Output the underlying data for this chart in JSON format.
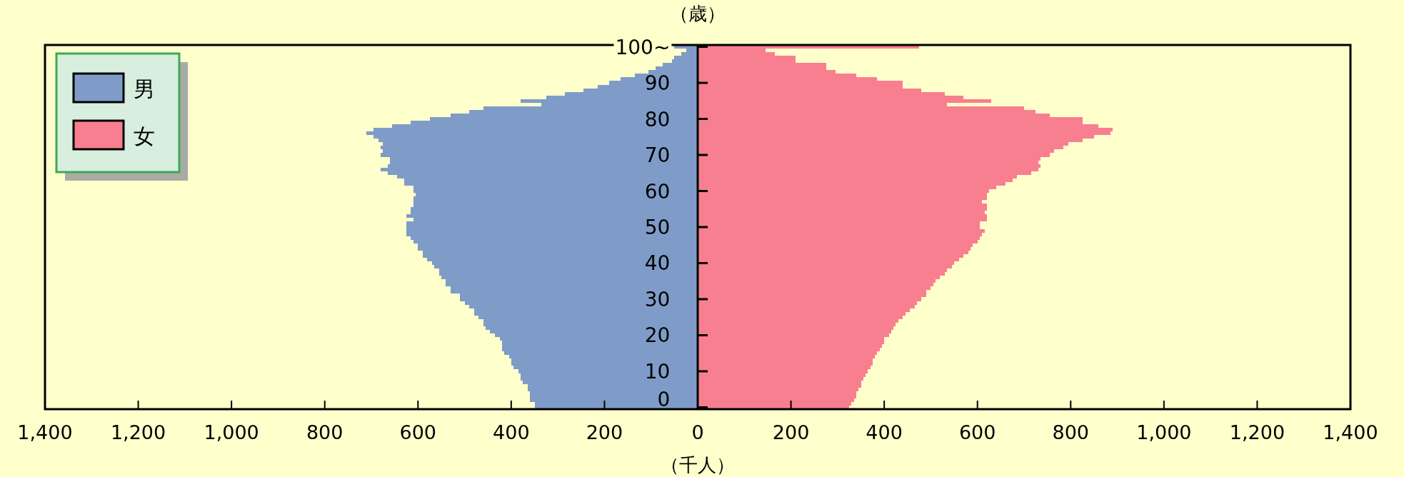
{
  "chart_data": {
    "type": "bar",
    "orientation": "horizontal",
    "stacked": true,
    "xlabel": "（千人）",
    "ylabel": "（歳）",
    "legend": "top left",
    "x": [
      0,
      1,
      2,
      3,
      4,
      5,
      6,
      7,
      8,
      9,
      10,
      11,
      12,
      13,
      14,
      15,
      16,
      17,
      18,
      19,
      20,
      21,
      22,
      23,
      24,
      25,
      26,
      27,
      28,
      29,
      30,
      31,
      32,
      33,
      34,
      35,
      36,
      37,
      38,
      39,
      40,
      41,
      42,
      43,
      44,
      45,
      46,
      47,
      48,
      49,
      50,
      51,
      52,
      53,
      54,
      55,
      56,
      57,
      58,
      59,
      60,
      61,
      62,
      63,
      64,
      65,
      66,
      67,
      68,
      69,
      70,
      71,
      72,
      73,
      74,
      75,
      76,
      77,
      78,
      79,
      80,
      81,
      82,
      83,
      84,
      85,
      86,
      87,
      88,
      89,
      90,
      91,
      92,
      93,
      94,
      95,
      96,
      97,
      98,
      99,
      100
    ],
    "xlim": [
      -1400,
      1400
    ],
    "xticks": [
      {
        "value": -1400,
        "label": "1,400"
      },
      {
        "value": -1200,
        "label": "1,200"
      },
      {
        "value": -1000,
        "label": "1,000"
      },
      {
        "value": -800,
        "label": "800"
      },
      {
        "value": -600,
        "label": "600"
      },
      {
        "value": -400,
        "label": "400"
      },
      {
        "value": -200,
        "label": "200"
      },
      0,
      200,
      400,
      600,
      800,
      {
        "value": 1000,
        "label": "1,000"
      },
      {
        "value": 1200,
        "label": "1,200"
      },
      {
        "value": 1400,
        "label": "1,400"
      }
    ],
    "ylim": [
      -0.5,
      100.5
    ],
    "yticks": [
      0,
      10,
      20,
      30,
      40,
      50,
      60,
      70,
      80,
      90,
      {
        "value": 100,
        "label": "100~"
      }
    ],
    "series": [
      {
        "name": "男",
        "color": "#7f9cc8",
        "values": [
          -350,
          -350,
          -360,
          -360,
          -360,
          -365,
          -365,
          -375,
          -380,
          -380,
          -385,
          -395,
          -400,
          -400,
          -405,
          -415,
          -420,
          -420,
          -420,
          -425,
          -435,
          -445,
          -455,
          -460,
          -460,
          -470,
          -480,
          -480,
          -490,
          -500,
          -510,
          -510,
          -530,
          -530,
          -540,
          -540,
          -550,
          -555,
          -555,
          -565,
          -570,
          -580,
          -590,
          -590,
          -600,
          -600,
          -610,
          -615,
          -625,
          -625,
          -625,
          -625,
          -610,
          -625,
          -615,
          -615,
          -610,
          -610,
          -610,
          -605,
          -610,
          -610,
          -630,
          -630,
          -645,
          -665,
          -680,
          -665,
          -660,
          -660,
          -680,
          -675,
          -680,
          -675,
          -685,
          -695,
          -710,
          -695,
          -655,
          -615,
          -575,
          -530,
          -490,
          -460,
          -335,
          -380,
          -325,
          -285,
          -245,
          -215,
          -190,
          -165,
          -135,
          -105,
          -90,
          -75,
          -55,
          -50,
          -35,
          -25,
          -50
        ]
      },
      {
        "name": "女",
        "color": "#f87f8f",
        "values": [
          325,
          330,
          335,
          340,
          340,
          345,
          350,
          350,
          355,
          360,
          365,
          370,
          375,
          375,
          380,
          385,
          390,
          395,
          400,
          400,
          410,
          415,
          420,
          425,
          430,
          440,
          445,
          455,
          465,
          470,
          480,
          490,
          490,
          500,
          505,
          510,
          520,
          530,
          535,
          545,
          550,
          560,
          570,
          580,
          585,
          590,
          600,
          605,
          610,
          615,
          605,
          605,
          620,
          620,
          615,
          620,
          620,
          610,
          620,
          620,
          625,
          640,
          660,
          675,
          685,
          715,
          730,
          735,
          730,
          735,
          755,
          765,
          785,
          795,
          825,
          850,
          885,
          890,
          860,
          825,
          825,
          755,
          725,
          700,
          535,
          630,
          570,
          530,
          480,
          440,
          440,
          385,
          340,
          295,
          275,
          275,
          210,
          210,
          165,
          145,
          475
        ]
      }
    ]
  }
}
